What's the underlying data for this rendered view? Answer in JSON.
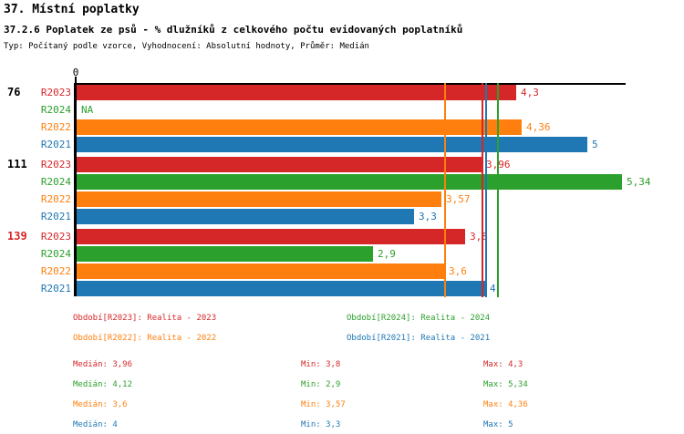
{
  "header": {
    "title1": "37. Místní poplatky",
    "title2": "37.2.6 Poplatek ze psů - % dlužníků z celkového počtu evidovaných poplatníků",
    "subtitle": "Typ: Počítaný podle vzorce, Vyhodnocení: Absolutní hodnoty, Průměr: Medián"
  },
  "colors": {
    "red": "#d62728",
    "green": "#2ca02c",
    "orange": "#ff7f0e",
    "blue": "#1f77b4",
    "axis": "#000000"
  },
  "chart_data": {
    "type": "bar",
    "orientation": "horizontal",
    "title": "37.2.6 Poplatek ze psů - % dlužníků z celkového počtu evidovaných poplatníků",
    "axis_zero_label": "0",
    "xlim": [
      0,
      5.4
    ],
    "grid": false,
    "groups": [
      {
        "label": "76",
        "label_color": "#000000",
        "bars": [
          {
            "series": "R2023",
            "color_key": "red",
            "value": 4.3,
            "display": "4,3"
          },
          {
            "series": "R2024",
            "color_key": "green",
            "value": null,
            "display": "NA"
          },
          {
            "series": "R2022",
            "color_key": "orange",
            "value": 4.36,
            "display": "4,36"
          },
          {
            "series": "R2021",
            "color_key": "blue",
            "value": 5,
            "display": "5"
          }
        ]
      },
      {
        "label": "111",
        "label_color": "#000000",
        "bars": [
          {
            "series": "R2023",
            "color_key": "red",
            "value": 3.96,
            "display": "3,96"
          },
          {
            "series": "R2024",
            "color_key": "green",
            "value": 5.34,
            "display": "5,34"
          },
          {
            "series": "R2022",
            "color_key": "orange",
            "value": 3.57,
            "display": "3,57"
          },
          {
            "series": "R2021",
            "color_key": "blue",
            "value": 3.3,
            "display": "3,3"
          }
        ]
      },
      {
        "label": "139",
        "label_color": "#d62728",
        "bars": [
          {
            "series": "R2023",
            "color_key": "red",
            "value": 3.8,
            "display": "3,8"
          },
          {
            "series": "R2024",
            "color_key": "green",
            "value": 2.9,
            "display": "2,9"
          },
          {
            "series": "R2022",
            "color_key": "orange",
            "value": 3.6,
            "display": "3,6"
          },
          {
            "series": "R2021",
            "color_key": "blue",
            "value": 4,
            "display": "4"
          }
        ]
      }
    ],
    "median_lines": [
      {
        "color_key": "orange",
        "value": 3.6
      },
      {
        "color_key": "red",
        "value": 3.96
      },
      {
        "color_key": "blue",
        "value": 4
      },
      {
        "color_key": "green",
        "value": 4.12
      }
    ]
  },
  "legend": [
    {
      "text": "Období[R2023]: Realita - 2023",
      "color_key": "red"
    },
    {
      "text": "Období[R2024]: Realita - 2024",
      "color_key": "green"
    },
    {
      "text": "Období[R2022]: Realita - 2022",
      "color_key": "orange"
    },
    {
      "text": "Období[R2021]: Realita - 2021",
      "color_key": "blue"
    }
  ],
  "stats": [
    {
      "color_key": "red",
      "median": "Medián: 3,96",
      "min": "Min: 3,8",
      "max": "Max: 4,3"
    },
    {
      "color_key": "green",
      "median": "Medián: 4,12",
      "min": "Min: 2,9",
      "max": "Max: 5,34"
    },
    {
      "color_key": "orange",
      "median": "Medián: 3,6",
      "min": "Min: 3,57",
      "max": "Max: 4,36"
    },
    {
      "color_key": "blue",
      "median": "Medián: 4",
      "min": "Min: 3,3",
      "max": "Max: 5"
    }
  ]
}
